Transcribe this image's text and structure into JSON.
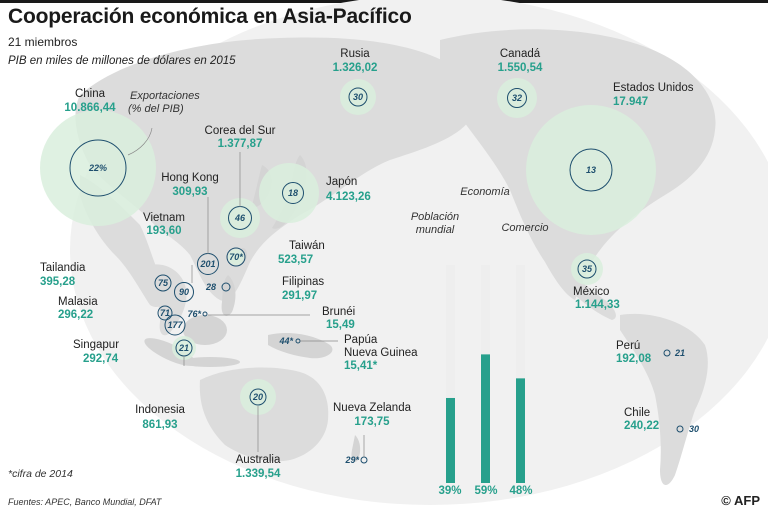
{
  "header": {
    "title": "Cooperación económica en Asia-Pacífico",
    "members": "21 miembros",
    "subtitle": "PIB en miles de millones de dólares en 2015",
    "exports_legend_line1": "Exportaciones",
    "exports_legend_line2": "(% del PIB)"
  },
  "countries": {
    "china": {
      "name": "China",
      "gdp": "10.866,44",
      "exports": "22%"
    },
    "rusia": {
      "name": "Rusia",
      "gdp": "1.326,02",
      "exports": "30"
    },
    "canada": {
      "name": "Canadá",
      "gdp": "1.550,54",
      "exports": "32"
    },
    "usa": {
      "name": "Estados Unidos",
      "gdp": "17.947",
      "exports": "13"
    },
    "corea": {
      "name": "Corea del Sur",
      "gdp": "1.377,87",
      "exports": "46"
    },
    "japon": {
      "name": "Japón",
      "gdp": "4.123,26",
      "exports": "18"
    },
    "hongkong": {
      "name": "Hong Kong",
      "gdp": "309,93",
      "exports": "201"
    },
    "vietnam": {
      "name": "Vietnam",
      "gdp": "193,60",
      "exports": "90"
    },
    "taiwan": {
      "name": "Taiwán",
      "gdp": "523,57",
      "exports": "70*"
    },
    "tailandia": {
      "name": "Tailandia",
      "gdp": "395,28",
      "exports": "75"
    },
    "filipinas": {
      "name": "Filipinas",
      "gdp": "291,97",
      "exports": "28"
    },
    "malasia": {
      "name": "Malasia",
      "gdp": "296,22",
      "exports": "71"
    },
    "brunei": {
      "name": "Brunéi",
      "gdp": "15,49",
      "exports": "76*"
    },
    "singapur": {
      "name": "Singapur",
      "gdp": "292,74",
      "exports": "177"
    },
    "papua_line1": "Papúa",
    "papua_line2": "Nueva Guinea",
    "papua_gdp": "15,41*",
    "papua_exports": "44*",
    "indonesia": {
      "name": "Indonesia",
      "gdp": "861,93",
      "exports": "21"
    },
    "australia": {
      "name": "Australia",
      "gdp": "1.339,54",
      "exports": "20"
    },
    "nz": {
      "name": "Nueva Zelanda",
      "gdp": "173,75",
      "exports": "29*"
    },
    "mexico": {
      "name": "México",
      "gdp": "1.144,33",
      "exports": "35"
    },
    "peru": {
      "name": "Perú",
      "gdp": "192,08",
      "exports": "21"
    },
    "chile": {
      "name": "Chile",
      "gdp": "240,22",
      "exports": "30"
    }
  },
  "shares": {
    "poblacion_line1": "Población",
    "poblacion_line2": "mundial",
    "economia": "Economía",
    "comercio": "Comercio",
    "values": [
      {
        "label": "Población mundial",
        "percent": 39,
        "text": "39%"
      },
      {
        "label": "Economía",
        "percent": 59,
        "text": "59%"
      },
      {
        "label": "Comercio",
        "percent": 48,
        "text": "48%"
      }
    ]
  },
  "footer": {
    "note": "*cifra de 2014",
    "sources": "Fuentes: APEC, Banco Mundial, DFAT",
    "credit": "© AFP"
  },
  "colors": {
    "map_fill": "#dcdcdc",
    "globe_fill": "#f0f0f0",
    "bubble_fill": "#d9eedd",
    "value_text": "#27a08c",
    "bar_fill": "#27a08c",
    "bar_track": "#eeeeee",
    "export_circle": "#1e4f6e"
  }
}
